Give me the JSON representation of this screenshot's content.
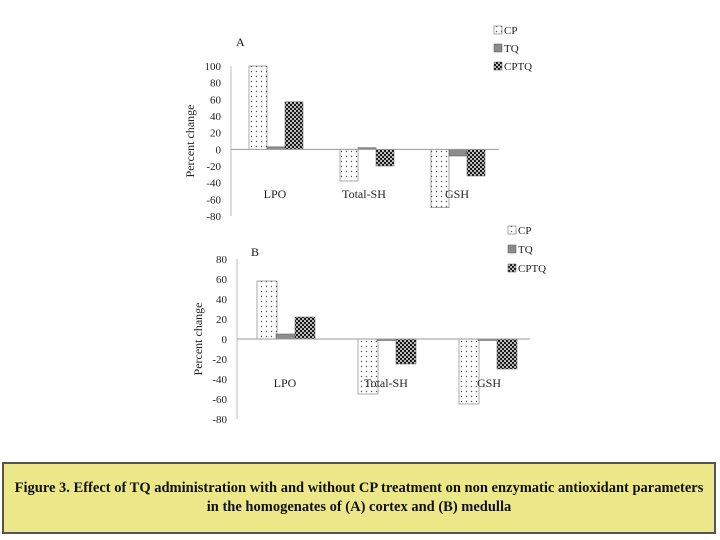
{
  "chart_data": [
    {
      "type": "bar",
      "panel_label": "A",
      "ylabel": "Percent change",
      "categories": [
        "LPO",
        "Total-SH",
        "GSH"
      ],
      "series": [
        {
          "name": "CP",
          "values": [
            100,
            -38,
            -70
          ],
          "pattern": "dots"
        },
        {
          "name": "TQ",
          "values": [
            3,
            2,
            -8
          ],
          "pattern": "solid"
        },
        {
          "name": "CPTQ",
          "values": [
            57,
            -20,
            -32
          ],
          "pattern": "checker"
        }
      ],
      "ylim": [
        -80,
        100
      ],
      "yticks": [
        -80,
        -60,
        -40,
        -20,
        0,
        20,
        40,
        60,
        80,
        100
      ],
      "grid": false,
      "legend": "top-right"
    },
    {
      "type": "bar",
      "panel_label": "B",
      "ylabel": "Percent change",
      "categories": [
        "LPO",
        "Total-SH",
        "GSH"
      ],
      "series": [
        {
          "name": "CP",
          "values": [
            58,
            -55,
            -65
          ],
          "pattern": "dots"
        },
        {
          "name": "TQ",
          "values": [
            5,
            0,
            0
          ],
          "pattern": "solid"
        },
        {
          "name": "CPTQ",
          "values": [
            22,
            -25,
            -30
          ],
          "pattern": "checker"
        }
      ],
      "ylim": [
        -80,
        80
      ],
      "yticks": [
        -80,
        -60,
        -40,
        -20,
        0,
        20,
        40,
        60,
        80
      ],
      "grid": false,
      "legend": "top-right"
    }
  ],
  "caption": "Figure 3. Effect of TQ administration with and without CP treatment on non enzymatic antioxidant parameters in the homogenates of  (A) cortex and (B) medulla",
  "colors": {
    "caption_bg": "#ece88a",
    "tq_bar": "#8c8c8c",
    "cp_dot": "#555555",
    "cptq_fill": "#222222"
  }
}
